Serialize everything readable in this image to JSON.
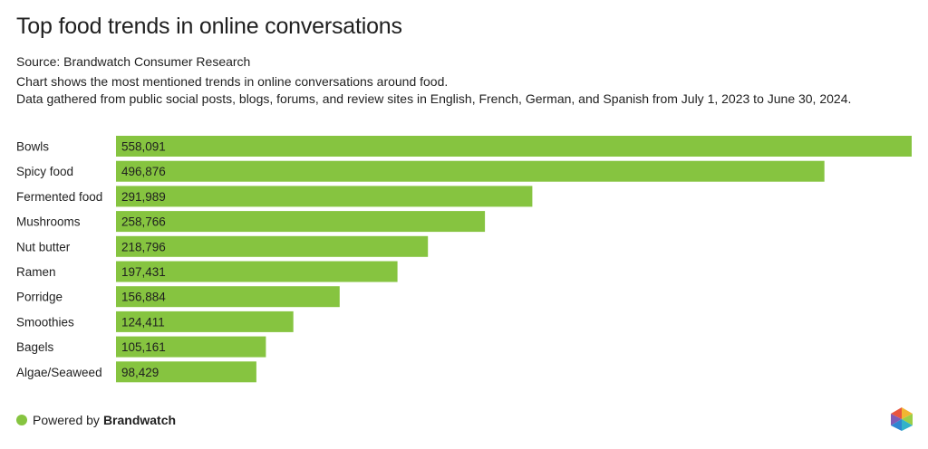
{
  "title": "Top food trends in online conversations",
  "source": "Source: Brandwatch Consumer Research",
  "description_1": "Chart shows the most mentioned trends in online conversations around food.",
  "description_2": "Data gathered from public social posts, blogs, forums, and review sites in English, French, German, and Spanish from July 1, 2023 to June 30, 2024.",
  "footer": {
    "powered_by": "Powered by",
    "brand": "Brandwatch",
    "dot_color": "#86c440"
  },
  "bar_color": "#86c440",
  "chart_data": {
    "type": "bar",
    "orientation": "horizontal",
    "categories": [
      "Bowls",
      "Spicy food",
      "Fermented food",
      "Mushrooms",
      "Nut butter",
      "Ramen",
      "Porridge",
      "Smoothies",
      "Bagels",
      "Algae/Seaweed"
    ],
    "values": [
      558091,
      496876,
      291989,
      258766,
      218796,
      197431,
      156884,
      124411,
      105161,
      98429
    ],
    "value_labels": [
      "558,091",
      "496,876",
      "291,989",
      "258,766",
      "218,796",
      "197,431",
      "156,884",
      "124,411",
      "105,161",
      "98,429"
    ],
    "xlim": [
      0,
      558091
    ],
    "grid": false,
    "legend": "none"
  }
}
